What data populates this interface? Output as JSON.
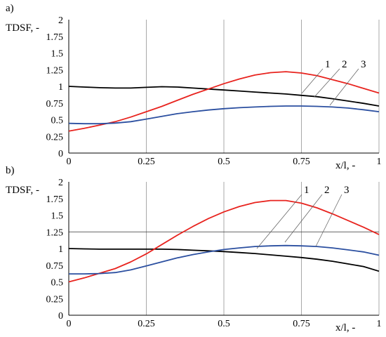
{
  "chart_data": [
    {
      "type": "line",
      "panel_label": "a)",
      "ylabel": "TDSF, -",
      "xlabel": "x/l, -",
      "xlim": [
        0,
        1
      ],
      "ylim": [
        0,
        2
      ],
      "x_ticks": [
        "0",
        "0.25",
        "0.5",
        "0.75",
        "1"
      ],
      "y_ticks": [
        "0",
        "0.25",
        "0.5",
        "0.75",
        "1",
        "1.25",
        "1.5",
        "1.75",
        "2"
      ],
      "grid": "vertical",
      "legend_labels": [
        "1",
        "2",
        "3"
      ],
      "series": [
        {
          "color": "#000000",
          "x": [
            0,
            0.05,
            0.1,
            0.15,
            0.2,
            0.25,
            0.3,
            0.35,
            0.4,
            0.45,
            0.5,
            0.55,
            0.6,
            0.65,
            0.7,
            0.75,
            0.8,
            0.85,
            0.9,
            0.95,
            1.0
          ],
          "y": [
            1.0,
            0.99,
            0.98,
            0.975,
            0.975,
            0.985,
            0.995,
            0.99,
            0.975,
            0.96,
            0.945,
            0.93,
            0.915,
            0.9,
            0.885,
            0.865,
            0.845,
            0.815,
            0.78,
            0.745,
            0.705
          ]
        },
        {
          "color": "#e8231e",
          "x": [
            0,
            0.05,
            0.1,
            0.15,
            0.2,
            0.25,
            0.3,
            0.35,
            0.4,
            0.45,
            0.5,
            0.55,
            0.6,
            0.65,
            0.7,
            0.75,
            0.8,
            0.85,
            0.9,
            0.95,
            1.0
          ],
          "y": [
            0.33,
            0.37,
            0.42,
            0.47,
            0.54,
            0.62,
            0.7,
            0.79,
            0.88,
            0.96,
            1.04,
            1.11,
            1.17,
            1.205,
            1.22,
            1.2,
            1.16,
            1.1,
            1.04,
            0.97,
            0.9
          ]
        },
        {
          "color": "#2b4fa0",
          "x": [
            0,
            0.05,
            0.1,
            0.15,
            0.2,
            0.25,
            0.3,
            0.35,
            0.4,
            0.45,
            0.5,
            0.55,
            0.6,
            0.65,
            0.7,
            0.75,
            0.8,
            0.85,
            0.9,
            0.95,
            1.0
          ],
          "y": [
            0.445,
            0.44,
            0.44,
            0.45,
            0.47,
            0.51,
            0.55,
            0.59,
            0.62,
            0.645,
            0.665,
            0.68,
            0.69,
            0.7,
            0.705,
            0.705,
            0.7,
            0.69,
            0.675,
            0.65,
            0.62
          ]
        }
      ]
    },
    {
      "type": "line",
      "panel_label": "b)",
      "ylabel": "TDSF, -",
      "xlabel": "x/l, -",
      "xlim": [
        0,
        1
      ],
      "ylim": [
        0,
        2
      ],
      "x_ticks": [
        "0",
        "0.25",
        "0.5",
        "0.75",
        "1"
      ],
      "y_ticks": [
        "0",
        "0.25",
        "0.5",
        "0.75",
        "1",
        "1.25",
        "1.5",
        "1.75",
        "2"
      ],
      "grid": "vertical",
      "legend_labels": [
        "1",
        "2",
        "3"
      ],
      "series": [
        {
          "color": "#000000",
          "x": [
            0,
            0.05,
            0.1,
            0.15,
            0.2,
            0.25,
            0.3,
            0.35,
            0.4,
            0.45,
            0.5,
            0.55,
            0.6,
            0.65,
            0.7,
            0.75,
            0.8,
            0.85,
            0.9,
            0.95,
            1.0
          ],
          "y": [
            1.0,
            0.995,
            0.99,
            0.99,
            0.99,
            0.99,
            0.99,
            0.985,
            0.975,
            0.965,
            0.955,
            0.94,
            0.925,
            0.905,
            0.885,
            0.865,
            0.84,
            0.81,
            0.77,
            0.73,
            0.66
          ]
        },
        {
          "color": "#e8231e",
          "x": [
            0,
            0.05,
            0.1,
            0.15,
            0.2,
            0.25,
            0.3,
            0.35,
            0.4,
            0.45,
            0.5,
            0.55,
            0.6,
            0.65,
            0.7,
            0.75,
            0.8,
            0.85,
            0.9,
            0.95,
            1.0
          ],
          "y": [
            0.5,
            0.56,
            0.63,
            0.7,
            0.8,
            0.92,
            1.06,
            1.2,
            1.33,
            1.45,
            1.55,
            1.63,
            1.69,
            1.72,
            1.72,
            1.68,
            1.61,
            1.52,
            1.42,
            1.32,
            1.21
          ]
        },
        {
          "color": "#2b4fa0",
          "x": [
            0,
            0.05,
            0.1,
            0.15,
            0.2,
            0.25,
            0.3,
            0.35,
            0.4,
            0.45,
            0.5,
            0.55,
            0.6,
            0.65,
            0.7,
            0.75,
            0.8,
            0.85,
            0.9,
            0.95,
            1.0
          ],
          "y": [
            0.62,
            0.62,
            0.625,
            0.64,
            0.68,
            0.74,
            0.8,
            0.86,
            0.91,
            0.95,
            0.985,
            1.01,
            1.03,
            1.04,
            1.045,
            1.04,
            1.03,
            1.01,
            0.98,
            0.95,
            0.9
          ]
        }
      ]
    }
  ]
}
